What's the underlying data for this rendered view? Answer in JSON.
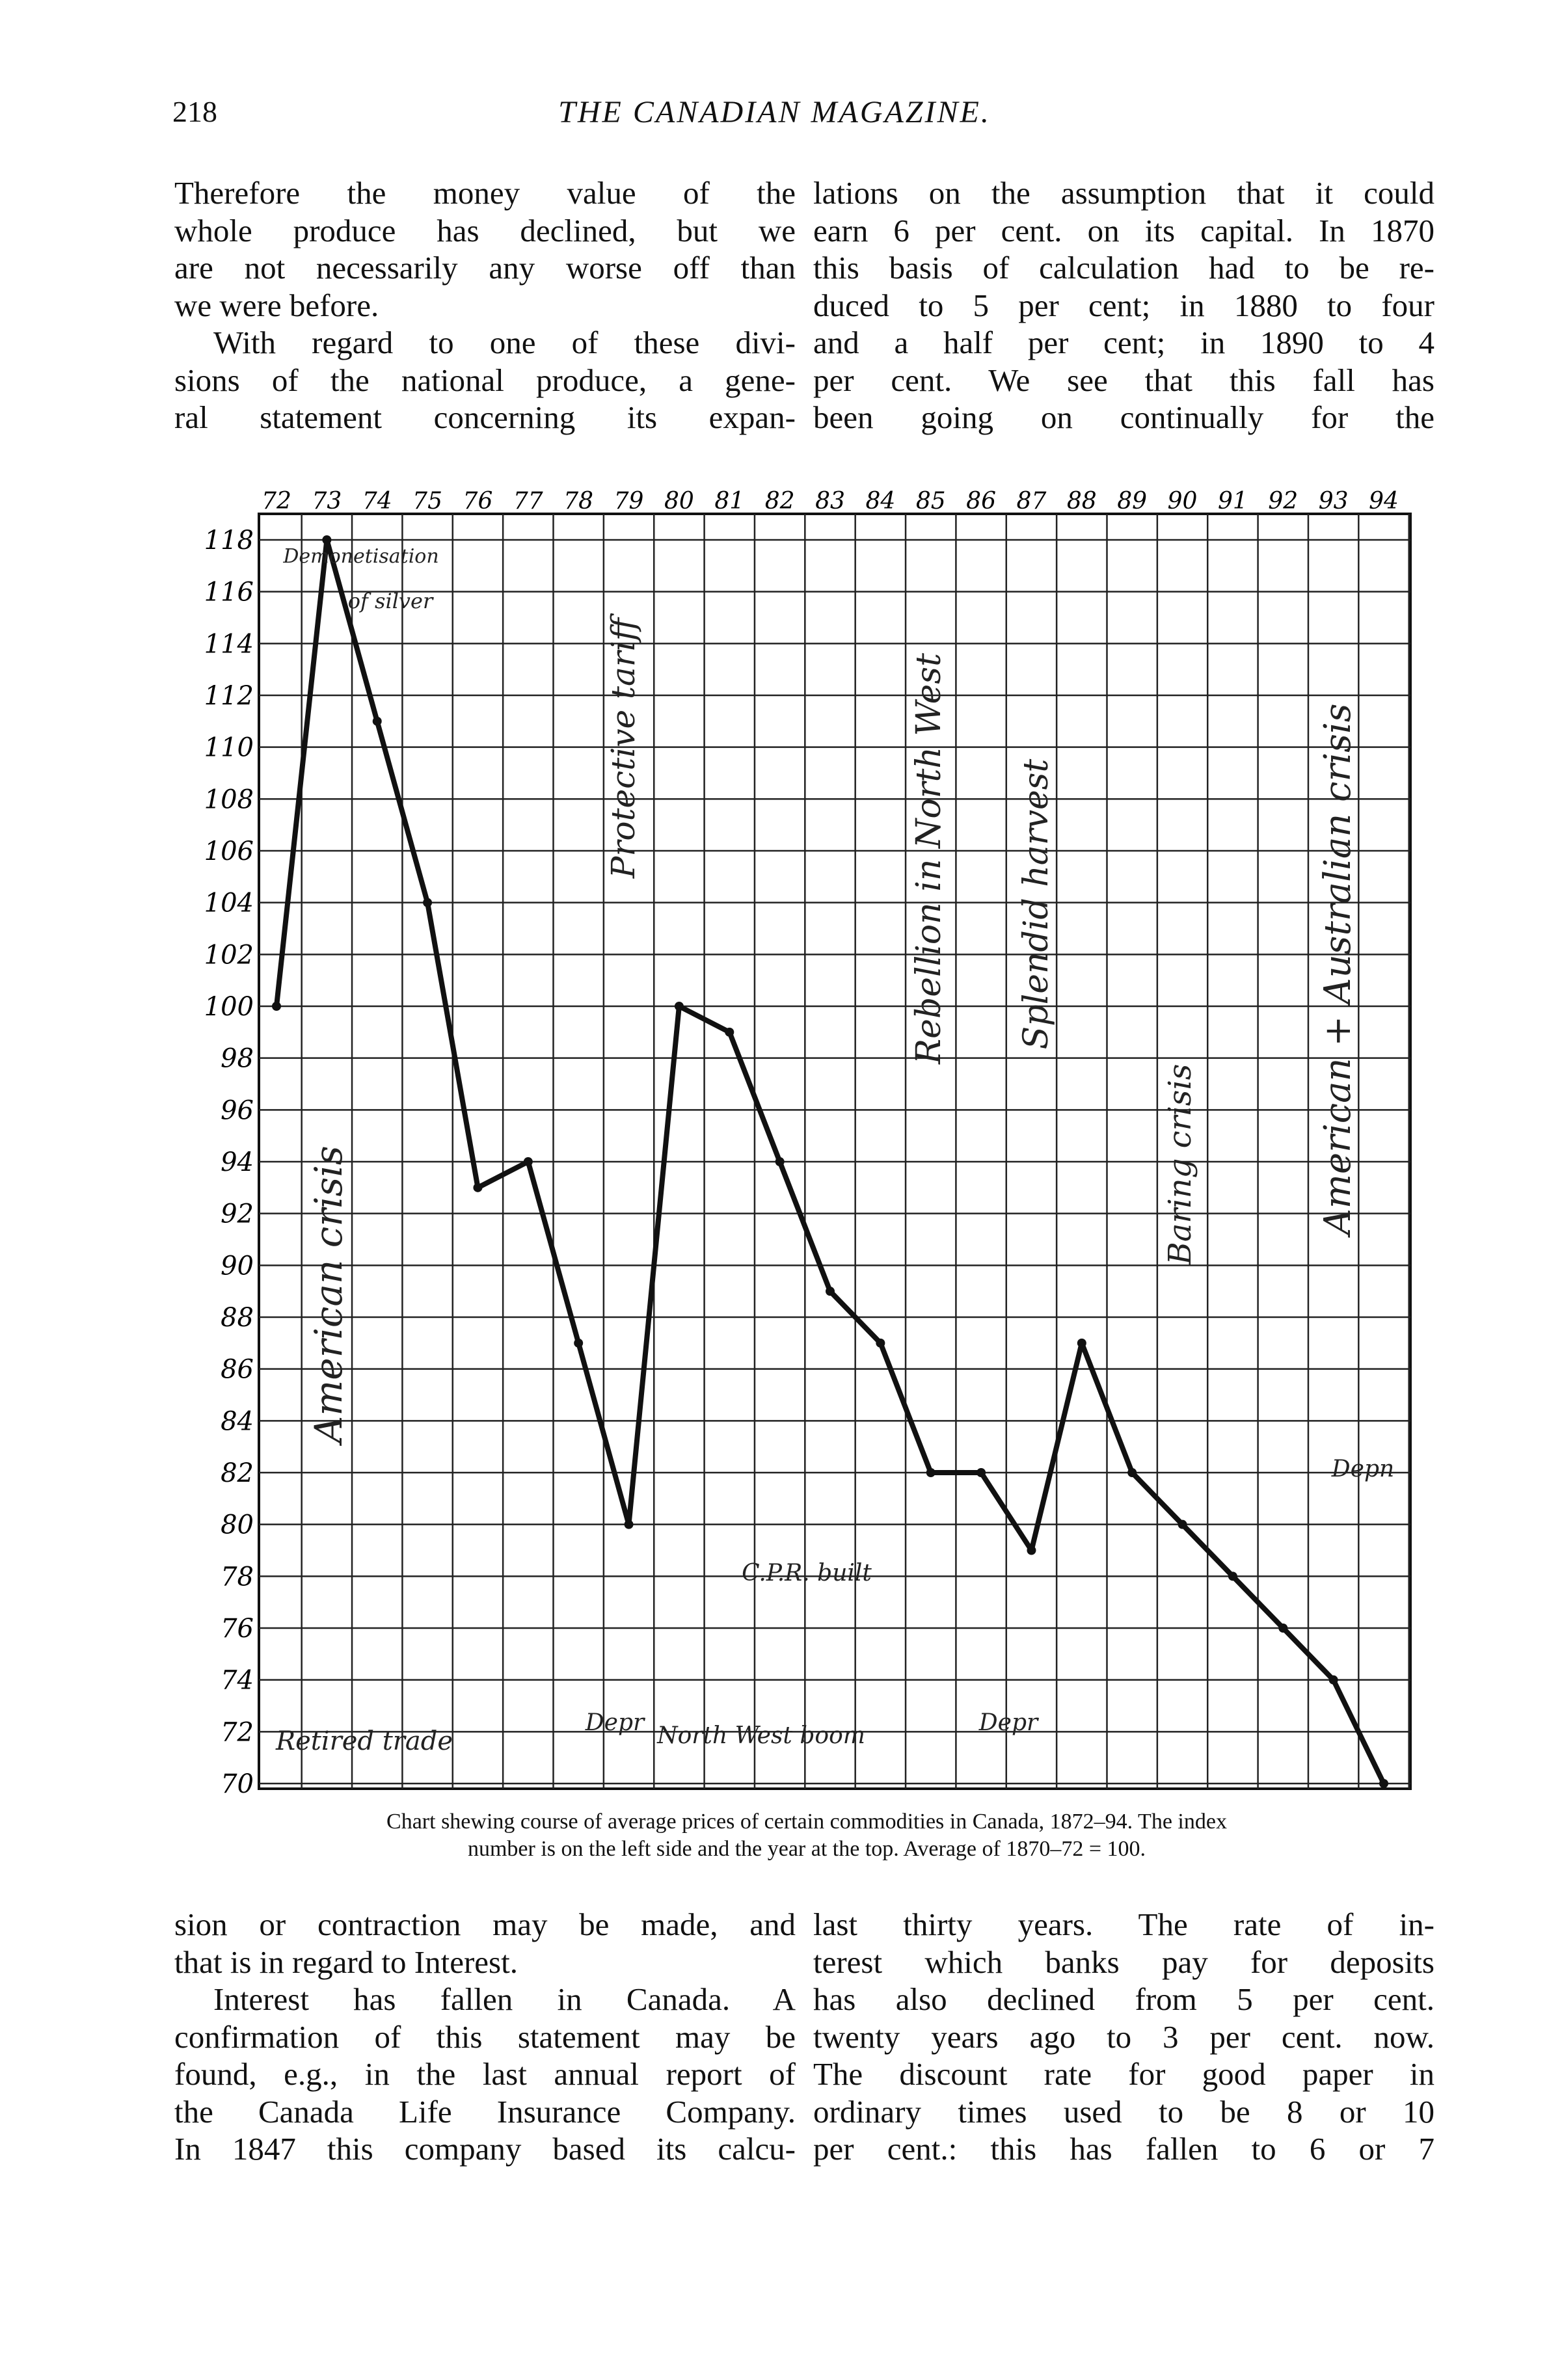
{
  "header": {
    "page_number": "218",
    "title": "THE CANADIAN MAGAZINE."
  },
  "top_text": {
    "left": [
      "Therefore the money value of the",
      "whole produce has declined, but we",
      "are not necessarily any worse off than",
      "we were before.",
      "With regard to one of these divi-",
      "sions of the national produce, a gene-",
      "ral statement concerning its expan-"
    ],
    "right": [
      "lations on the assumption that it could",
      "earn 6 per cent. on its capital. In 1870",
      "this basis of calculation had to be re-",
      "duced to 5 per cent; in 1880 to four",
      "and a half per cent; in 1890 to 4",
      "per cent. We see that this fall has",
      "been going on continually for the"
    ]
  },
  "chart_data": {
    "type": "line",
    "categories": [
      "72",
      "73",
      "74",
      "75",
      "76",
      "77",
      "78",
      "79",
      "80",
      "81",
      "82",
      "83",
      "84",
      "85",
      "86",
      "87",
      "88",
      "89",
      "90",
      "91",
      "92",
      "93",
      "94"
    ],
    "values": [
      100,
      118,
      111,
      104,
      93,
      94,
      87,
      80,
      100,
      99,
      94,
      89,
      87,
      82,
      82,
      79,
      87,
      82,
      80,
      78,
      76,
      74,
      70
    ],
    "color": "#111111",
    "ylim": [
      70,
      118
    ],
    "yticks": [
      70,
      72,
      74,
      76,
      78,
      80,
      82,
      84,
      86,
      88,
      90,
      92,
      94,
      96,
      98,
      100,
      102,
      104,
      106,
      108,
      110,
      112,
      114,
      116,
      118
    ],
    "grid": true,
    "annotations": [
      "Demonetisation",
      "of silver",
      "American crisis",
      "Protective tariff",
      "Rebellion in North West",
      "Splendid harvest",
      "Baring crisis",
      "American + Australian crisis",
      "C.P.R. built",
      "Retired trade",
      "Depr",
      "North West boom",
      "Depr",
      "Depn"
    ],
    "caption": [
      "Chart shewing course of average prices of certain commodities in Canada, 1872–94. The index",
      "number is on the left side and the year at the top. Average of 1870–72 = 100."
    ]
  },
  "bottom_text": {
    "left": [
      "sion or contraction may be made, and",
      "that is in regard to Interest.",
      "Interest has fallen in Canada. A",
      "confirmation of this statement may be",
      "found, e.g., in the last annual report of",
      "the Canada Life Insurance Company.",
      "In 1847 this company based its calcu-"
    ],
    "right": [
      "last thirty years. The rate of in-",
      "terest which banks pay for deposits",
      "has also declined from 5 per cent.",
      "twenty years ago to 3 per cent. now.",
      "The discount rate for good paper in",
      "ordinary times used to be 8 or 10",
      "per cent.: this has fallen to 6 or 7"
    ]
  }
}
